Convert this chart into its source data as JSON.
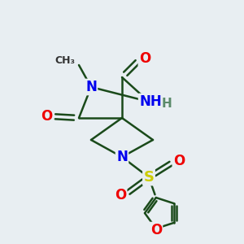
{
  "background_color": "#e8eef2",
  "bond_color": "#1a4a1a",
  "bond_width": 1.8,
  "atom_colors": {
    "N": "#0000ee",
    "O": "#ee0000",
    "S": "#cccc00",
    "H": "#607060"
  },
  "figsize": [
    3.0,
    3.0
  ],
  "dpi": 100
}
